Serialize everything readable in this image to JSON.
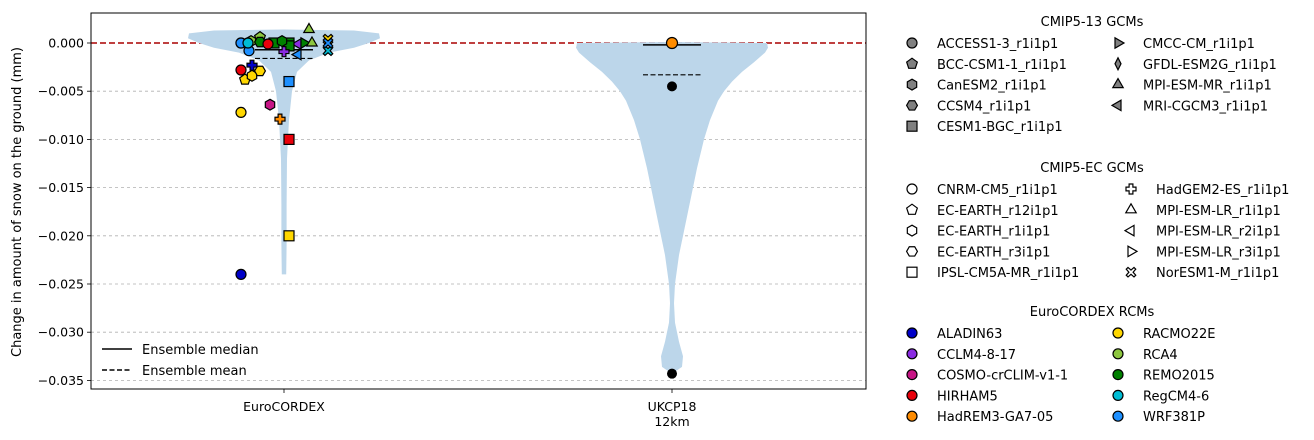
{
  "chart_data": {
    "type": "violin",
    "ylabel": "Change in amount of snow on the ground (mm)",
    "ylim": [
      -0.036,
      0.003
    ],
    "yticks": [
      0.0,
      -0.005,
      -0.01,
      -0.015,
      -0.02,
      -0.025,
      -0.03,
      -0.035
    ],
    "ytick_labels": [
      "0.000",
      "−0.005",
      "−0.010",
      "−0.015",
      "−0.020",
      "−0.025",
      "−0.030",
      "−0.035"
    ],
    "grid": "horizontal dashed",
    "zero_line_color": "#aa0000",
    "violin_color": "#bcd6ea",
    "categories": [
      "EuroCORDEX",
      "UKCP18\n12km"
    ],
    "groups": [
      {
        "name": "EuroCORDEX",
        "median": -0.0007,
        "mean": -0.0016,
        "points": [
          {
            "gcm": "CNRM-CM5_r1i1p1",
            "rcm": "ALADIN63",
            "value": -0.024
          },
          {
            "gcm": "EC-EARTH_r12i1p1",
            "rcm": "RACMO22E",
            "value": -0.0038
          },
          {
            "gcm": "EC-EARTH_r1i1p1",
            "rcm": "RACMO22E",
            "value": -0.0034
          },
          {
            "gcm": "EC-EARTH_r3i1p1",
            "rcm": "RACMO22E",
            "value": -0.0029
          },
          {
            "gcm": "EC-EARTH_r12i1p1",
            "rcm": "RCA4",
            "value": 0.0006
          },
          {
            "gcm": "CNRM-CM5_r1i1p1",
            "rcm": "HIRHAM5",
            "value": -0.0028
          },
          {
            "gcm": "CNRM-CM5_r1i1p1",
            "rcm": "RACMO22E",
            "value": -0.0072
          },
          {
            "gcm": "EC-EARTH_r1i1p1",
            "rcm": "COSMO-crCLIM-v1-1",
            "value": -0.0064
          },
          {
            "gcm": "HadGEM2-ES_r1i1p1",
            "rcm": "HadREM3-GA7-05",
            "value": -0.0079
          },
          {
            "gcm": "HadGEM2-ES_r1i1p1",
            "rcm": "ALADIN63",
            "value": -0.0023
          },
          {
            "gcm": "IPSL-CM5A-MR_r1i1p1",
            "rcm": "HIRHAM5",
            "value": -0.01
          },
          {
            "gcm": "IPSL-CM5A-MR_r1i1p1",
            "rcm": "RACMO22E",
            "value": -0.02
          },
          {
            "gcm": "IPSL-CM5A-MR_r1i1p1",
            "rcm": "WRF381P",
            "value": -0.004
          },
          {
            "gcm": "IPSL-CM5A-MR_r1i1p1",
            "rcm": "REMO2015",
            "value": 0.0
          },
          {
            "gcm": "MPI-ESM-LR_r1i1p1",
            "rcm": "RCA4",
            "value": 0.0014
          },
          {
            "gcm": "NorESM1-M_r1i1p1",
            "rcm": "RACMO22E",
            "value": 0.0004
          },
          {
            "gcm": "CNRM-CM5_r1i1p1",
            "rcm": "RegCM4-6",
            "value": 0.0
          },
          {
            "gcm": "CNRM-CM5_r1i1p1",
            "rcm": "WRF381P",
            "value": -0.0008
          }
        ]
      },
      {
        "name": "UKCP18 12km",
        "median": -0.0002,
        "mean": -0.0033,
        "points": [
          {
            "value": 0.0
          },
          {
            "value": -0.0045
          },
          {
            "value": -0.0343
          }
        ]
      }
    ],
    "legend_stats": [
      {
        "label": "Ensemble median",
        "style": "solid"
      },
      {
        "label": "Ensemble mean",
        "style": "dashed"
      }
    ],
    "legends": [
      {
        "title": "CMIP5-13 GCMs",
        "entries": [
          {
            "label": "ACCESS1-3_r1i1p1",
            "marker": "circle"
          },
          {
            "label": "BCC-CSM1-1_r1i1p1",
            "marker": "pentagon"
          },
          {
            "label": "CanESM2_r1i1p1",
            "marker": "hexagon"
          },
          {
            "label": "CCSM4_r1i1p1",
            "marker": "hexagon2"
          },
          {
            "label": "CESM1-BGC_r1i1p1",
            "marker": "square"
          },
          {
            "label": "CMCC-CM_r1i1p1",
            "marker": "triangle-right"
          },
          {
            "label": "GFDL-ESM2G_r1i1p1",
            "marker": "thin-diamond"
          },
          {
            "label": "MPI-ESM-MR_r1i1p1",
            "marker": "triangle-up"
          },
          {
            "label": "MRI-CGCM3_r1i1p1",
            "marker": "triangle-left"
          }
        ]
      },
      {
        "title": "CMIP5-EC GCMs",
        "entries": [
          {
            "label": "CNRM-CM5_r1i1p1",
            "marker": "circle"
          },
          {
            "label": "EC-EARTH_r12i1p1",
            "marker": "pentagon"
          },
          {
            "label": "EC-EARTH_r1i1p1",
            "marker": "hexagon"
          },
          {
            "label": "EC-EARTH_r3i1p1",
            "marker": "hexagon2"
          },
          {
            "label": "IPSL-CM5A-MR_r1i1p1",
            "marker": "square"
          },
          {
            "label": "HadGEM2-ES_r1i1p1",
            "marker": "plus"
          },
          {
            "label": "MPI-ESM-LR_r1i1p1",
            "marker": "triangle-up"
          },
          {
            "label": "MPI-ESM-LR_r2i1p1",
            "marker": "triangle-left"
          },
          {
            "label": "MPI-ESM-LR_r3i1p1",
            "marker": "triangle-right"
          },
          {
            "label": "NorESM1-M_r1i1p1",
            "marker": "x-filled"
          }
        ]
      },
      {
        "title": "EuroCORDEX RCMs",
        "entries": [
          {
            "label": "ALADIN63",
            "color": "#0000c8"
          },
          {
            "label": "CCLM4-8-17",
            "color": "#8a2be2"
          },
          {
            "label": "COSMO-crCLIM-v1-1",
            "color": "#c71585"
          },
          {
            "label": "HIRHAM5",
            "color": "#e8000b"
          },
          {
            "label": "HadREM3-GA7-05",
            "color": "#ff8c00"
          },
          {
            "label": "RACMO22E",
            "color": "#ffd700"
          },
          {
            "label": "RCA4",
            "color": "#8dc63f"
          },
          {
            "label": "REMO2015",
            "color": "#008000"
          },
          {
            "label": "RegCM4-6",
            "color": "#00bcd4"
          },
          {
            "label": "WRF381P",
            "color": "#1e90ff"
          }
        ]
      }
    ]
  }
}
